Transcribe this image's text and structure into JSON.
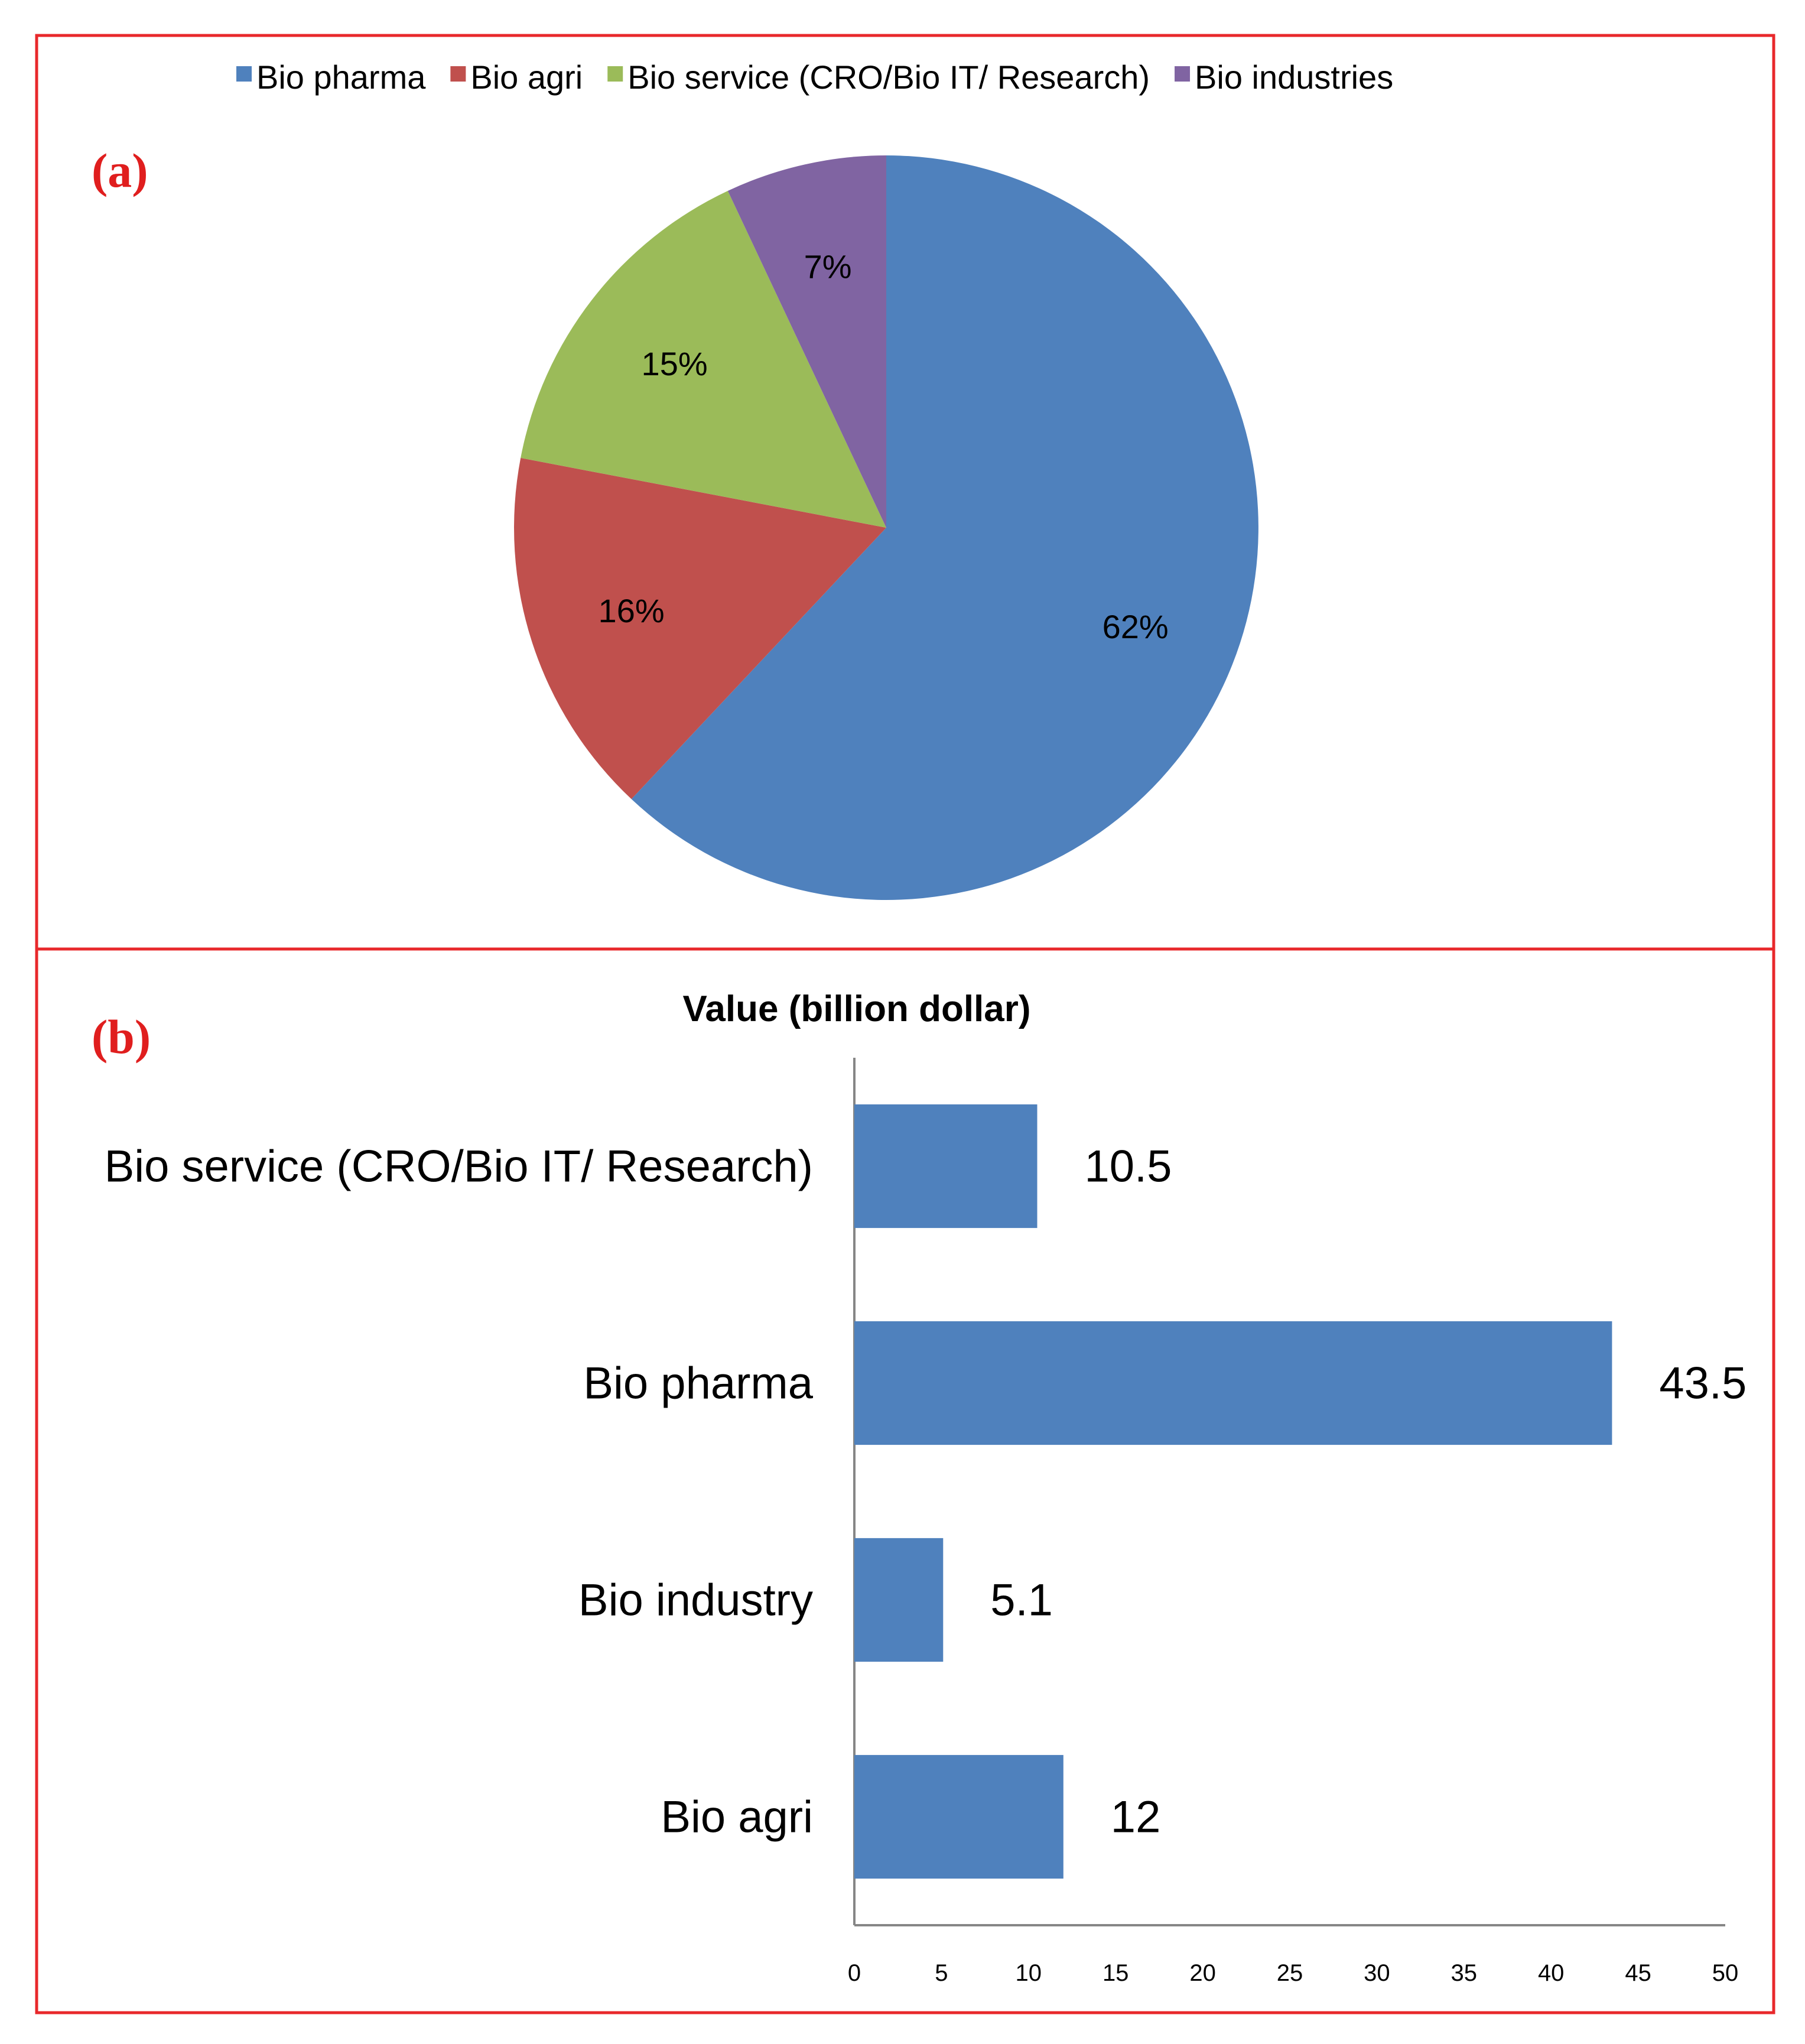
{
  "colors": {
    "frame": "#e8282b",
    "panel_label": "#e01e1e",
    "bio_pharma": "#4f81bd",
    "bio_agri": "#c0504d",
    "bio_service": "#9bbb59",
    "bio_industries": "#8064a2",
    "bar": "#4f81bd",
    "axis": "#868686"
  },
  "chart_data": [
    {
      "type": "pie",
      "panel_label": "(a)",
      "legend_position": "top",
      "slices": [
        {
          "name": "Bio pharma",
          "value": 62,
          "label": "62%",
          "color": "#4f81bd"
        },
        {
          "name": "Bio agri",
          "value": 16,
          "label": "16%",
          "color": "#c0504d"
        },
        {
          "name": "Bio service (CRO/Bio IT/ Research)",
          "value": 15,
          "label": "15%",
          "color": "#9bbb59"
        },
        {
          "name": "Bio industries",
          "value": 7,
          "label": "7%",
          "color": "#8064a2"
        }
      ]
    },
    {
      "type": "bar",
      "orientation": "horizontal",
      "panel_label": "(b)",
      "title": "Value (billion dollar)",
      "categories": [
        "Bio service (CRO/Bio IT/ Research)",
        "Bio pharma",
        "Bio industry",
        "Bio agri"
      ],
      "values": [
        10.5,
        43.5,
        5.1,
        12
      ],
      "value_labels": [
        "10.5",
        "43.5",
        "5.1",
        "12"
      ],
      "xlim": [
        0,
        50
      ],
      "xticks": [
        0,
        5,
        10,
        15,
        20,
        25,
        30,
        35,
        40,
        45,
        50
      ],
      "grid": false
    }
  ]
}
